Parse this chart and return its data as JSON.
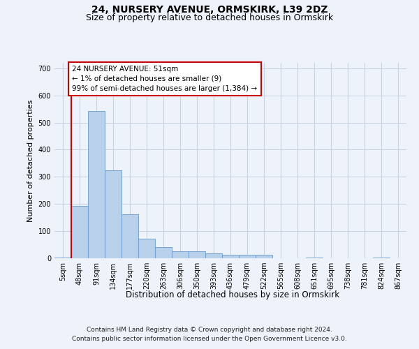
{
  "title_line1": "24, NURSERY AVENUE, ORMSKIRK, L39 2DZ",
  "title_line2": "Size of property relative to detached houses in Ormskirk",
  "xlabel": "Distribution of detached houses by size in Ormskirk",
  "ylabel": "Number of detached properties",
  "footer_line1": "Contains HM Land Registry data © Crown copyright and database right 2024.",
  "footer_line2": "Contains public sector information licensed under the Open Government Licence v3.0.",
  "annotation_line1": "24 NURSERY AVENUE: 51sqm",
  "annotation_line2": "← 1% of detached houses are smaller (9)",
  "annotation_line3": "99% of semi-detached houses are larger (1,384) →",
  "bar_categories": [
    "5sqm",
    "48sqm",
    "91sqm",
    "134sqm",
    "177sqm",
    "220sqm",
    "263sqm",
    "306sqm",
    "350sqm",
    "393sqm",
    "436sqm",
    "479sqm",
    "522sqm",
    "565sqm",
    "608sqm",
    "651sqm",
    "695sqm",
    "738sqm",
    "781sqm",
    "824sqm",
    "867sqm"
  ],
  "bar_heights": [
    3,
    193,
    543,
    323,
    163,
    73,
    40,
    27,
    27,
    17,
    13,
    13,
    13,
    0,
    0,
    3,
    0,
    0,
    0,
    3,
    0
  ],
  "bar_color": "#b8d0ea",
  "bar_edge_color": "#6699cc",
  "property_line_color": "#cc0000",
  "annotation_box_edge_color": "#cc0000",
  "background_color": "#eef2fa",
  "ylim": [
    0,
    720
  ],
  "yticks": [
    0,
    100,
    200,
    300,
    400,
    500,
    600,
    700
  ],
  "grid_color": "#c5d0e0",
  "title1_fontsize": 10,
  "title2_fontsize": 9,
  "ylabel_fontsize": 8,
  "xlabel_fontsize": 8.5,
  "tick_fontsize": 7,
  "footer_fontsize": 6.5,
  "annot_fontsize": 7.5
}
